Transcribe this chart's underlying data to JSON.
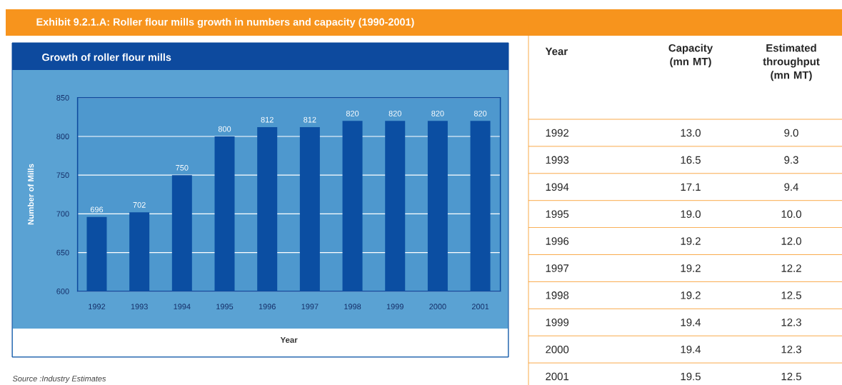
{
  "chart_data": [
    {
      "type": "bar",
      "title": "Exhibit 9.2.1.A:  Roller flour mills growth in numbers and capacity (1990-2001)",
      "subtitle": "Growth of roller flour mills",
      "xlabel": "Year",
      "ylabel": "Number of Mills",
      "categories": [
        "1992",
        "1993",
        "1994",
        "1995",
        "1996",
        "1997",
        "1998",
        "1999",
        "2000",
        "2001"
      ],
      "values": [
        696,
        702,
        750,
        800,
        812,
        812,
        820,
        820,
        820,
        820
      ],
      "color": "#0b4ea2",
      "ylim": [
        600,
        850
      ],
      "yticks": [
        600,
        650,
        700,
        750,
        800,
        850
      ],
      "grid": "y",
      "data_labels": true,
      "annotations": [
        "Source :Industry Estimates"
      ]
    },
    {
      "type": "heatmap",
      "ylabel": "Year",
      "categories": [
        "Capacity (mn MT)",
        "Estimated throughput (mn MT)"
      ],
      "y_categories": [
        "1992",
        "1993",
        "1994",
        "1995",
        "1996",
        "1997",
        "1998",
        "1999",
        "2000",
        "2001"
      ],
      "cells": [
        [
          13.0,
          9.0
        ],
        [
          16.5,
          9.3
        ],
        [
          17.1,
          9.4
        ],
        [
          19.0,
          10.0
        ],
        [
          19.2,
          12.0
        ],
        [
          19.2,
          12.2
        ],
        [
          19.2,
          12.5
        ],
        [
          19.4,
          12.3
        ],
        [
          19.4,
          12.3
        ],
        [
          19.5,
          12.5
        ]
      ],
      "cell_labels": [
        [
          "13.0",
          "9.0"
        ],
        [
          "16.5",
          "9.3"
        ],
        [
          "17.1",
          "9.4"
        ],
        [
          "19.0",
          "10.0"
        ],
        [
          "19.2",
          "12.0"
        ],
        [
          "19.2",
          "12.2"
        ],
        [
          "19.2",
          "12.5"
        ],
        [
          "19.4",
          "12.3"
        ],
        [
          "19.4",
          "12.3"
        ],
        [
          "19.5",
          "12.5"
        ]
      ]
    }
  ]
}
